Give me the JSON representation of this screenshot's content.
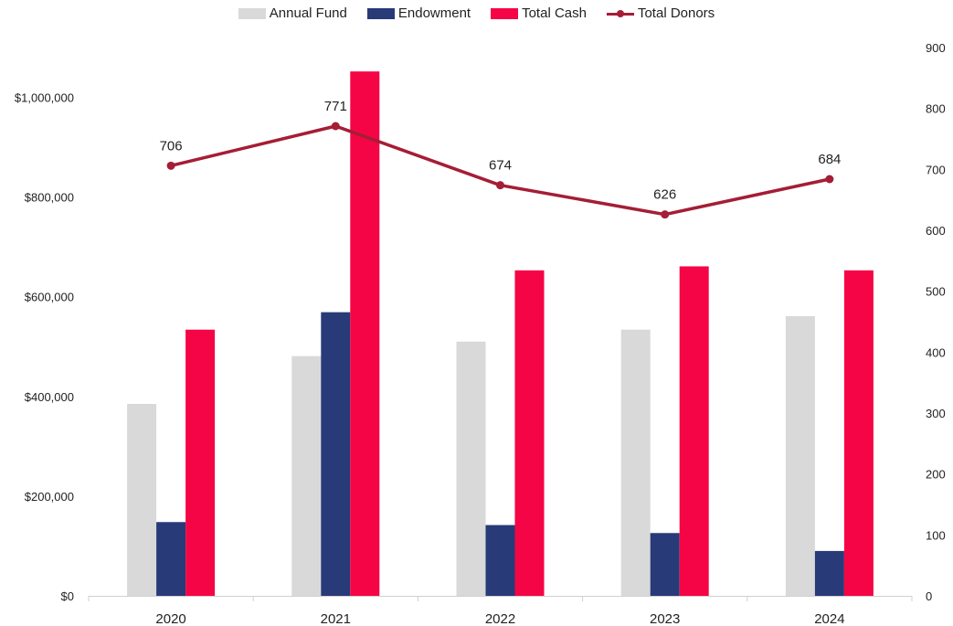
{
  "chart_data": {
    "type": "bar",
    "categories": [
      "2020",
      "2021",
      "2022",
      "2023",
      "2024"
    ],
    "series": [
      {
        "name": "Annual Fund",
        "type": "bar",
        "axis": "left",
        "color": "#d9d9d9",
        "values": [
          385000,
          481000,
          510000,
          534000,
          561000
        ]
      },
      {
        "name": "Endowment",
        "type": "bar",
        "axis": "left",
        "color": "#283a78",
        "values": [
          148000,
          569000,
          142000,
          126000,
          90000
        ]
      },
      {
        "name": "Total Cash",
        "type": "bar",
        "axis": "left",
        "color": "#f50545",
        "values": [
          534000,
          1052000,
          653000,
          661000,
          653000
        ]
      },
      {
        "name": "Total Donors",
        "type": "line",
        "axis": "right",
        "color": "#a51d36",
        "values": [
          706,
          771,
          674,
          626,
          684
        ],
        "data_labels": [
          "706",
          "771",
          "674",
          "626",
          "684"
        ]
      }
    ],
    "y_left": {
      "ylim": [
        0,
        1100000
      ],
      "ticks": [
        0,
        200000,
        400000,
        600000,
        800000,
        1000000
      ],
      "tick_labels": [
        "$0",
        "$200,000",
        "$400,000",
        "$600,000",
        "$800,000",
        "$1,000,000"
      ]
    },
    "y_right": {
      "ylim": [
        0,
        900
      ],
      "ticks": [
        0,
        100,
        200,
        300,
        400,
        500,
        600,
        700,
        800,
        900
      ],
      "tick_labels": [
        "0",
        "100",
        "200",
        "300",
        "400",
        "500",
        "600",
        "700",
        "800",
        "900"
      ]
    },
    "legend": {
      "position": "top-center",
      "items": [
        "Annual Fund",
        "Endowment",
        "Total Cash",
        "Total Donors"
      ]
    },
    "grid": false,
    "title": "",
    "xlabel": "",
    "ylabel": ""
  }
}
